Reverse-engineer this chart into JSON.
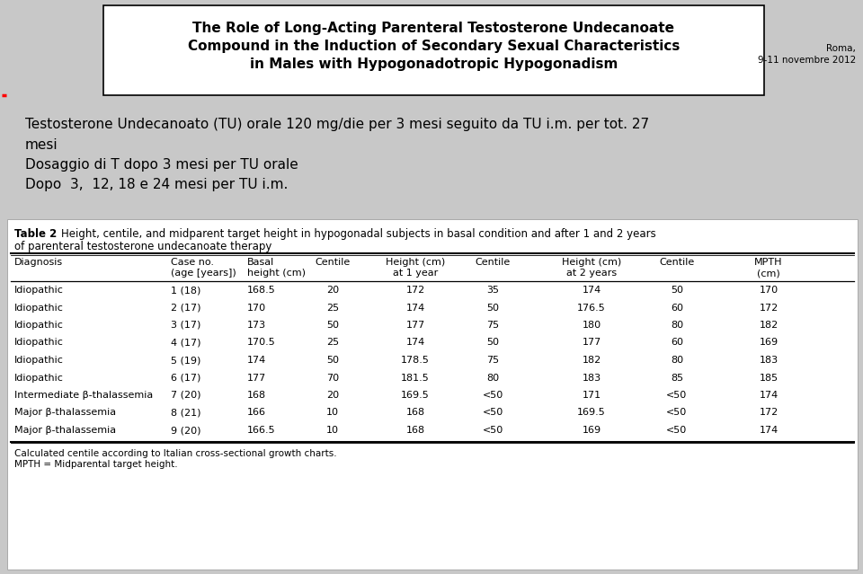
{
  "bg_color": "#c8c8c8",
  "header_title_line1": "The Role of Long-Acting Parenteral Testosterone Undecanoate",
  "header_title_line2": "Compound in the Induction of Secondary Sexual Characteristics",
  "header_title_line3": "in Males with Hypogonadotropic Hypogonadism",
  "roma_text": "Roma,\n9-11 novembre 2012",
  "body_text_line1": "Testosterone Undecanoato (TU) orale 120 mg/die per 3 mesi seguito da TU i.m. per tot. 27 mesi",
  "body_text_line2": "Dosaggio di T dopo 3 mesi per TU orale",
  "body_text_line3": "Dopo  3,  12, 18 e 24 mesi per TU i.m.",
  "table_title": "Table 2",
  "table_caption_line1": "Height, centile, and midparent target height in hypogonadal subjects in basal condition and after 1 and 2 years",
  "table_caption_line2": "of parenteral testosterone undecanoate therapy",
  "table_rows": [
    [
      "Idiopathic",
      "1 (18)",
      "168.5",
      "20",
      "172",
      "35",
      "174",
      "50",
      "170"
    ],
    [
      "Idiopathic",
      "2 (17)",
      "170",
      "25",
      "174",
      "50",
      "176.5",
      "60",
      "172"
    ],
    [
      "Idiopathic",
      "3 (17)",
      "173",
      "50",
      "177",
      "75",
      "180",
      "80",
      "182"
    ],
    [
      "Idiopathic",
      "4 (17)",
      "170.5",
      "25",
      "174",
      "50",
      "177",
      "60",
      "169"
    ],
    [
      "Idiopathic",
      "5 (19)",
      "174",
      "50",
      "178.5",
      "75",
      "182",
      "80",
      "183"
    ],
    [
      "Idiopathic",
      "6 (17)",
      "177",
      "70",
      "181.5",
      "80",
      "183",
      "85",
      "185"
    ],
    [
      "Intermediate β-thalassemia",
      "7 (20)",
      "168",
      "20",
      "169.5",
      "<50",
      "171",
      "<50",
      "174"
    ],
    [
      "Major β-thalassemia",
      "8 (21)",
      "166",
      "10",
      "168",
      "<50",
      "169.5",
      "<50",
      "172"
    ],
    [
      "Major β-thalassemia",
      "9 (20)",
      "166.5",
      "10",
      "168",
      "<50",
      "169",
      "<50",
      "174"
    ]
  ],
  "table_footnote1": "Calculated centile according to Italian cross-sectional growth charts.",
  "table_footnote2": "MPTH = Midparental target height."
}
